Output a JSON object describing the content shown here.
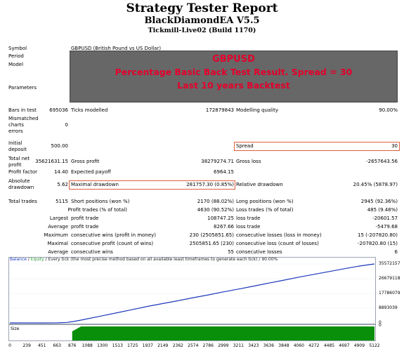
{
  "header": {
    "title": "Strategy Tester Report",
    "subtitle": "BlackDiamondEA V5.5",
    "server": "Tickmill-Live02 (Build 1170)"
  },
  "banner": {
    "line1": "GBPUSD",
    "line2": "Percentage Basic Back Test Result. Spread = 30",
    "line3": "Last 10 years Backtest"
  },
  "info": {
    "symbol_label": "Symbol",
    "symbol_value": "GBPUSD (British Pound vs US Dollar)",
    "period_label": "Period",
    "model_label": "Model",
    "parameters_label": "Parameters",
    "bars_label": "Bars in test",
    "bars_value": "695036",
    "ticks_label": "Ticks modelled",
    "ticks_value": "172879843",
    "quality_label": "Modelling quality",
    "quality_value": "90.00%",
    "mismatch_label_1": "Mismatched",
    "mismatch_label_2": "charts",
    "mismatch_label_3": "errors",
    "mismatch_value": "0",
    "deposit_label_1": "Initial",
    "deposit_label_2": "deposit",
    "deposit_value": "500.00",
    "spread_label": "Spread",
    "spread_value": "30",
    "net_label_1": "Total net",
    "net_label_2": "profit",
    "net_value": "35621631.15",
    "gross_profit_label": "Gross profit",
    "gross_profit_value": "38279274.71",
    "gross_loss_label": "Gross loss",
    "gross_loss_value": "-2657643.56",
    "pf_label": "Profit factor",
    "pf_value": "14.40",
    "payoff_label": "Expected payoff",
    "payoff_value": "6964.15",
    "abs_dd_label_1": "Absolute",
    "abs_dd_label_2": "drawdown",
    "abs_dd_value": "5.62",
    "max_dd_label": "Maximal drawdown",
    "max_dd_value": "281757.30 (0.85%)",
    "rel_dd_label": "Relative drawdown",
    "rel_dd_value": "20.45% (5878.97)"
  },
  "trades": {
    "total_label": "Total trades",
    "total_value": "5115",
    "short_label": "Short positions (won %)",
    "short_value": "2170 (88.02%)",
    "long_label": "Long positions (won %)",
    "long_value": "2945 (92.36%)",
    "profit_trades_label": "Profit trades (% of total)",
    "profit_trades_value": "4630 (90.52%)",
    "loss_trades_label": "Loss trades (% of total)",
    "loss_trades_value": "485 (9.48%)",
    "largest_label": "Largest",
    "largest_profit_label": "profit trade",
    "largest_profit_value": "108747.25",
    "largest_loss_label": "loss trade",
    "largest_loss_value": "-20601.57",
    "average_label": "Average",
    "avg_profit_label": "profit trade",
    "avg_profit_value": "8267.66",
    "avg_loss_label": "loss trade",
    "avg_loss_value": "-5479.68",
    "maximum_label": "Maximum",
    "max_cons_wins_label": "consecutive wins (profit in money)",
    "max_cons_wins_value": "230 (2505851.65)",
    "max_cons_losses_label": "consecutive losses (loss in money)",
    "max_cons_losses_value": "15 (-207820.80)",
    "maximal_label": "Maximal",
    "maximal_profit_label": "consecutive profit (count of wins)",
    "maximal_profit_value": "2505851.65 (230)",
    "maximal_loss_label": "consecutive loss (count of losses)",
    "maximal_loss_value": "-207820.80 (15)",
    "avg2_label": "Average",
    "avg_cons_wins_label": "consecutive wins",
    "avg_cons_wins_value": "55",
    "avg_cons_losses_label": "consecutive losses",
    "avg_cons_losses_value": "6"
  },
  "chart_data": {
    "type": "line",
    "legend_balance": "Balance",
    "legend_sep": " / ",
    "legend_equity": "Equity",
    "legend_rest": " / Every tick (the most precise method based on all available least timeframes to generate each tick) / 90.00%",
    "colors": {
      "balance": "#1c39bb",
      "equity": "#2c9a3b",
      "size": "#0a8f0a"
    },
    "y_ticks": [
      "35572157",
      "26679118",
      "17786079",
      "8893039",
      "0"
    ],
    "y_tick_values": [
      35572157,
      26679118,
      17786079,
      8893039,
      0
    ],
    "ylim": [
      0,
      35572157
    ],
    "x_ticks": [
      "0",
      "239",
      "451",
      "663",
      "876",
      "1088",
      "1300",
      "1513",
      "1725",
      "1937",
      "2149",
      "2362",
      "2574",
      "2786",
      "2999",
      "3211",
      "3423",
      "3636",
      "3848",
      "4060",
      "4272",
      "4485",
      "4697",
      "4909",
      "5122"
    ],
    "xlim": [
      0,
      5122
    ],
    "series": [
      {
        "name": "Balance",
        "x": [
          0,
          239,
          451,
          663,
          800,
          900,
          1000,
          1100,
          1300,
          1513,
          1725,
          1937,
          2149,
          2362,
          2574,
          2786,
          2999,
          3211,
          3423,
          3636,
          3848,
          4060,
          4272,
          4485,
          4697,
          4909,
          5122
        ],
        "values": [
          500,
          5000,
          12000,
          30000,
          300000,
          900000,
          1700000,
          2600000,
          4300000,
          6200000,
          8100000,
          10000000,
          11700000,
          13400000,
          15200000,
          16900000,
          18700000,
          20400000,
          22200000,
          24000000,
          25800000,
          27600000,
          29300000,
          31000000,
          32700000,
          34300000,
          35572157
        ]
      }
    ],
    "size_label": "Size",
    "size_zero": "0",
    "size_start": 876,
    "size_peak": 1000
  }
}
